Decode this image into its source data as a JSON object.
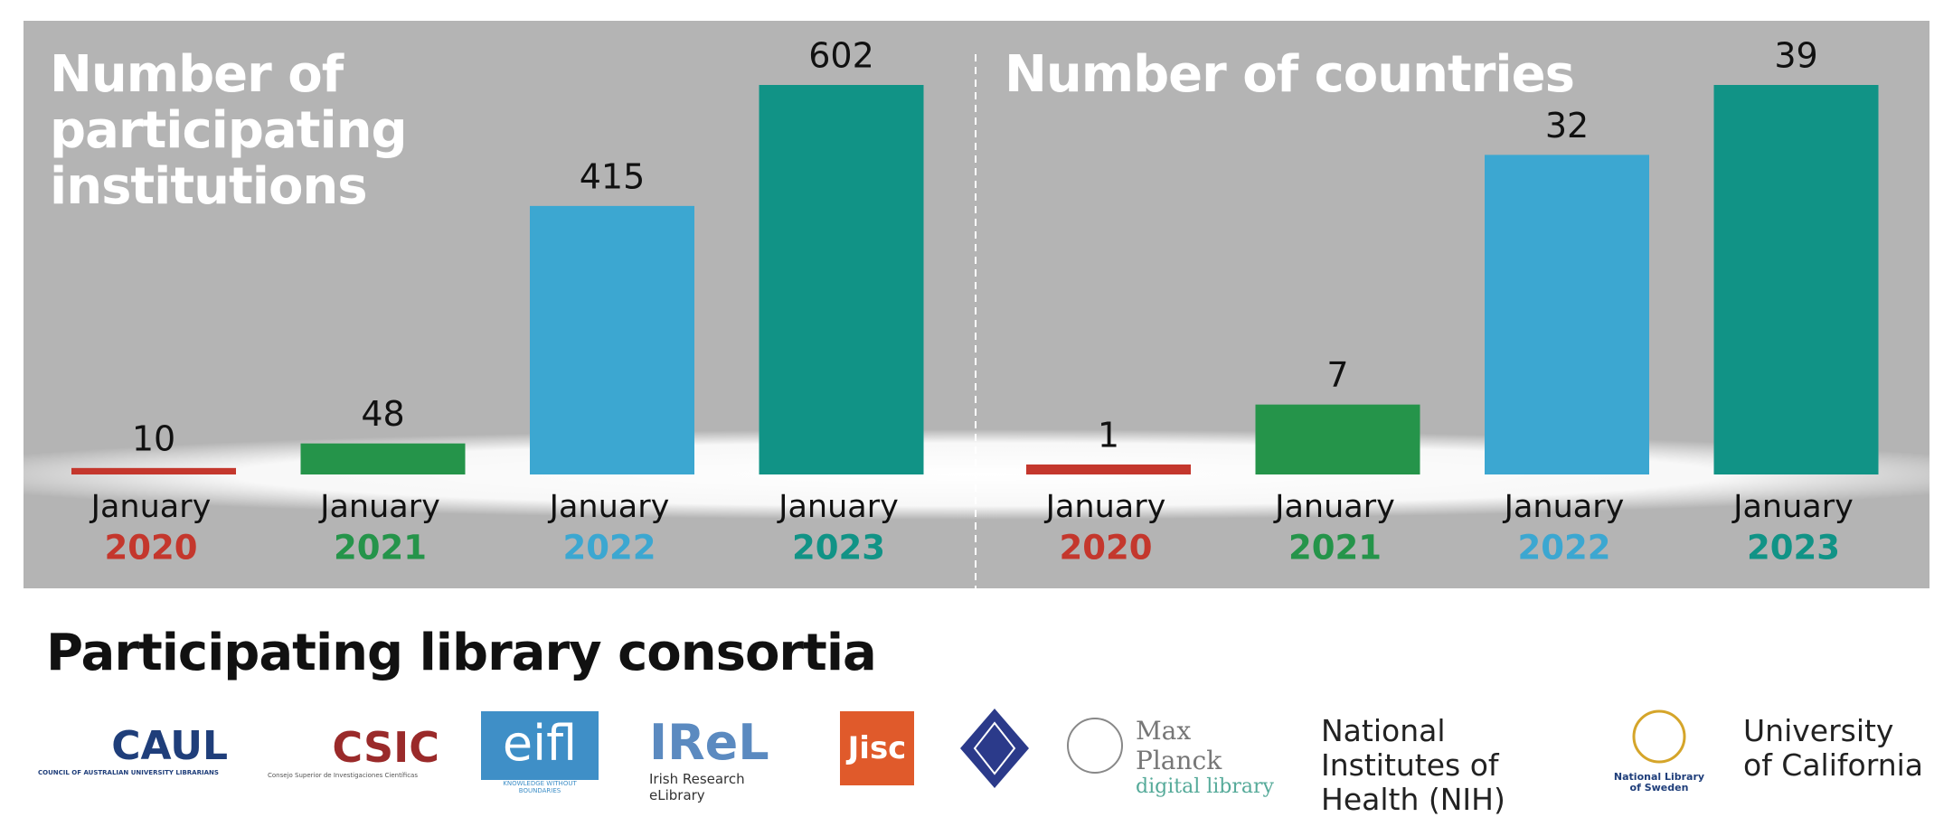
{
  "chart_data": [
    {
      "type": "bar",
      "title": "Number of participating institutions",
      "categories": [
        {
          "month": "January",
          "year": "2020"
        },
        {
          "month": "January",
          "year": "2021"
        },
        {
          "month": "January",
          "year": "2022"
        },
        {
          "month": "January",
          "year": "2023"
        }
      ],
      "values": [
        10,
        48,
        415,
        602
      ],
      "colors": [
        "#c4372d",
        "#25944a",
        "#3ca7d1",
        "#119386"
      ]
    },
    {
      "type": "bar",
      "title": "Number of countries",
      "categories": [
        {
          "month": "January",
          "year": "2020"
        },
        {
          "month": "January",
          "year": "2021"
        },
        {
          "month": "January",
          "year": "2022"
        },
        {
          "month": "January",
          "year": "2023"
        }
      ],
      "values": [
        1,
        7,
        32,
        39
      ],
      "colors": [
        "#c4372d",
        "#25944a",
        "#3ca7d1",
        "#119386"
      ]
    }
  ],
  "consortia": {
    "title": "Participating library consortia",
    "caul": {
      "name": "CAUL",
      "sub": "COUNCIL OF AUSTRALIAN UNIVERSITY LIBRARIANS"
    },
    "csic": {
      "name": "CSIC",
      "sub": "Consejo Superior de Investigaciones Científicas"
    },
    "eifl": {
      "name": "eifl",
      "sub": "KNOWLEDGE WITHOUT BOUNDARIES"
    },
    "irel": {
      "name": "IReL",
      "sub": "Irish Research eLibrary"
    },
    "jisc": {
      "name": "Jisc"
    },
    "mpdl": {
      "name": "Max Planck",
      "sub": "digital library"
    },
    "nih": {
      "name": "National Institutes of Health (NIH)"
    },
    "kb": {
      "name": "National Library of Sweden"
    },
    "uc": {
      "name": "University of California"
    }
  }
}
